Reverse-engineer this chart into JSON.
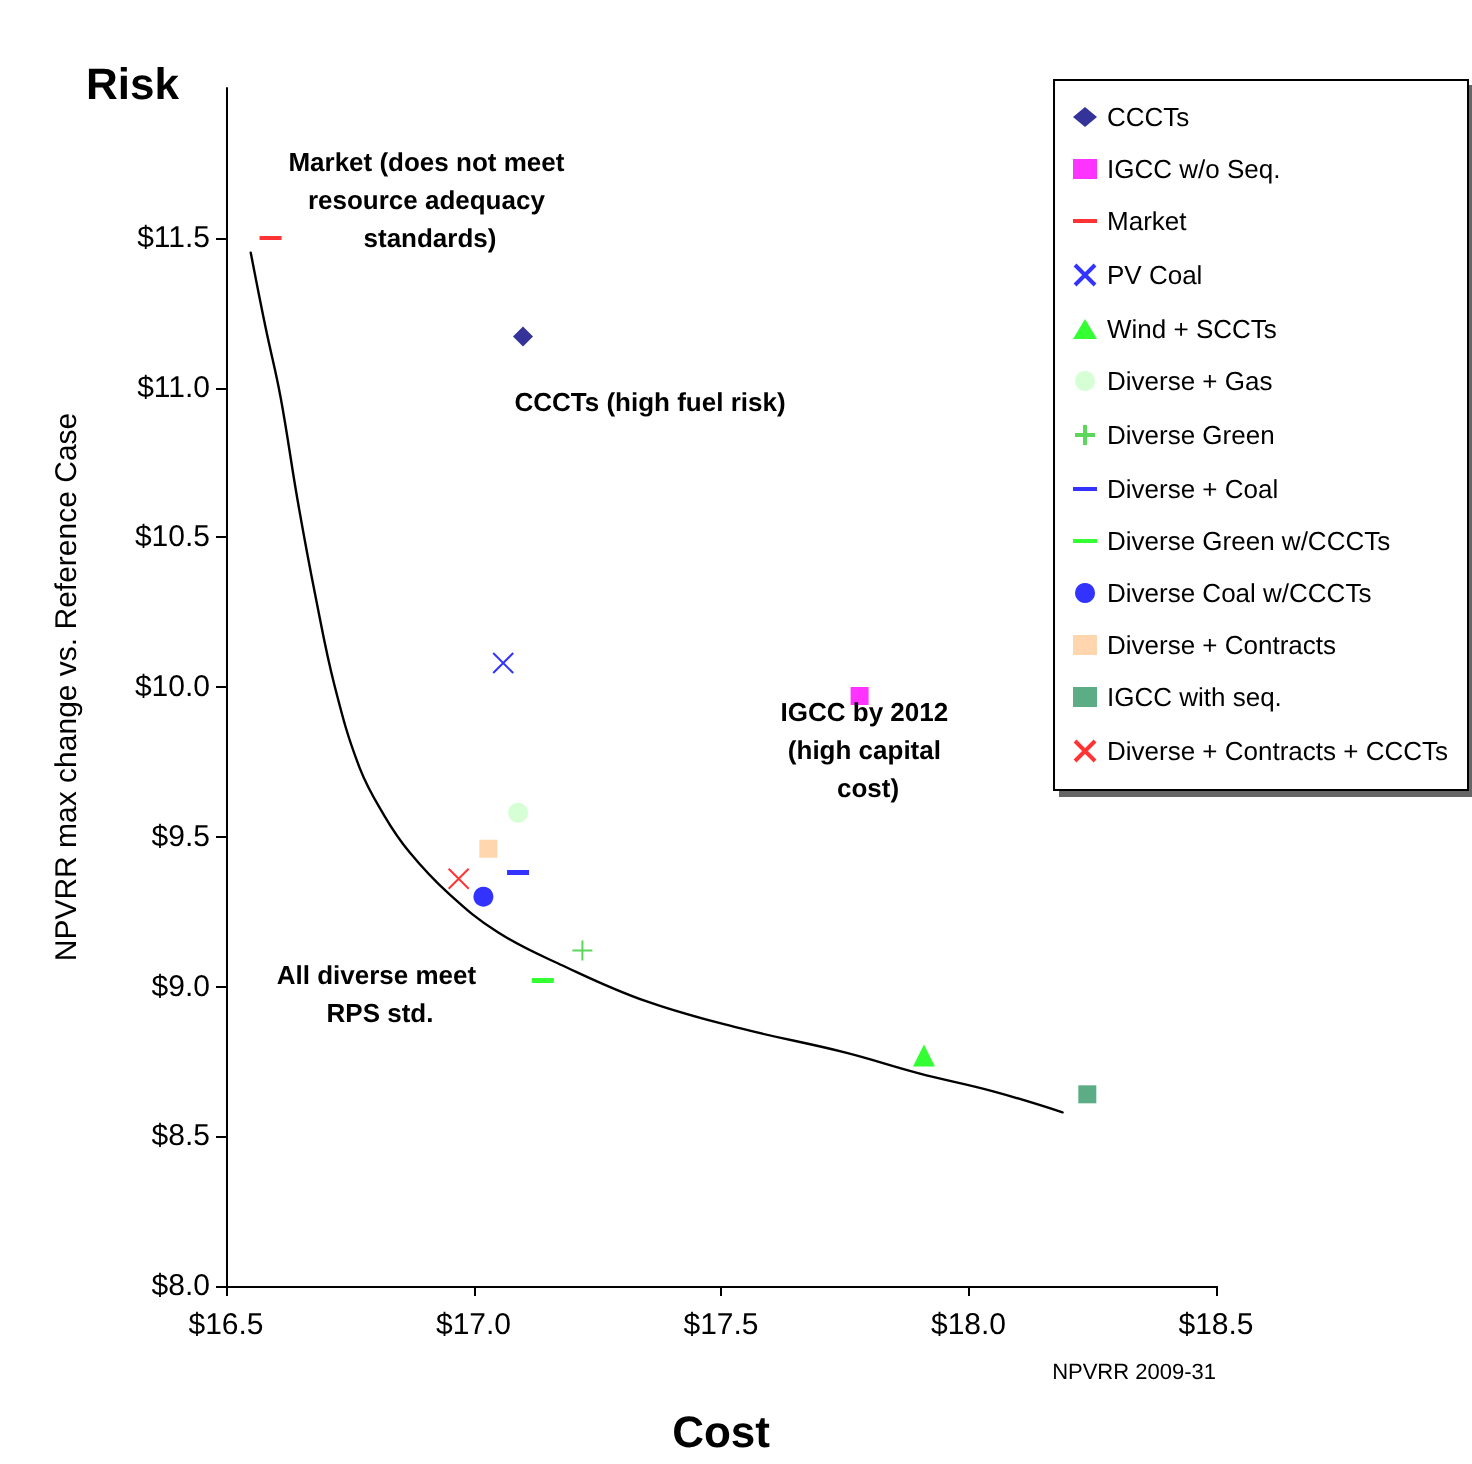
{
  "chart_data": {
    "type": "scatter",
    "title": "Risk",
    "xlabel": "Cost",
    "ylabel": "NPVRR max change vs. Reference Case",
    "xlim": [
      16.5,
      18.5
    ],
    "xticks": [
      {
        "value": 16.5,
        "label": "$16.5"
      },
      {
        "value": 17,
        "label": "$17.0"
      },
      {
        "value": 17.5,
        "label": "$17.5"
      },
      {
        "value": 18,
        "label": "$18.0"
      },
      {
        "value": 18.5,
        "label": "$18.5"
      }
    ],
    "ylim": [
      8,
      12
    ],
    "yticks": [
      {
        "value": 8,
        "label": "$8.0"
      },
      {
        "value": 8.5,
        "label": "$8.5"
      },
      {
        "value": 9,
        "label": "$9.0"
      },
      {
        "value": 9.5,
        "label": "$9.5"
      },
      {
        "value": 10,
        "label": "$10.0"
      },
      {
        "value": 10.5,
        "label": "$10.5"
      },
      {
        "value": 11,
        "label": "$11.0"
      },
      {
        "value": 11.5,
        "label": "$11.5"
      }
    ],
    "grid": false,
    "legend": "top right",
    "series": [
      {
        "name": "CCCTs",
        "color": "#000080",
        "marker": "diamond",
        "x": [
          17.1
        ],
        "values": [
          11.17
        ]
      },
      {
        "name": "IGCC w/o Seq.",
        "color": "#ff00ff",
        "marker": "square",
        "x": [
          17.78
        ],
        "values": [
          9.97
        ]
      },
      {
        "name": "Market",
        "color": "#ff0000",
        "x": [
          16.59
        ],
        "values": [
          11.5
        ]
      },
      {
        "name": "PV Coal",
        "color": "#0000ff",
        "marker": "cross",
        "x": [
          17.06
        ],
        "values": [
          10.08
        ]
      },
      {
        "name": "Wind + SCCTs",
        "color": "#00ff00",
        "marker": "triangle",
        "x": [
          17.91
        ],
        "values": [
          8.77
        ]
      },
      {
        "name": "Diverse + Gas",
        "color": "#ccffcc",
        "marker": "circle",
        "x": [
          17.09
        ],
        "values": [
          9.58
        ]
      },
      {
        "name": "Diverse Green",
        "color": "#33cc33",
        "marker": "plus",
        "x": [
          17.22
        ],
        "values": [
          9.12
        ]
      },
      {
        "name": "Diverse + Coal",
        "color": "#0000ff",
        "x": [
          17.09
        ],
        "values": [
          9.38
        ]
      },
      {
        "name": "Diverse Green w/CCCTs",
        "color": "#00ff00",
        "x": [
          17.14
        ],
        "values": [
          9.02
        ]
      },
      {
        "name": "Diverse Coal w/CCCTs",
        "color": "#0000ff",
        "marker": "circle",
        "x": [
          17.02
        ],
        "values": [
          9.3
        ]
      },
      {
        "name": "Diverse + Contracts",
        "color": "#ffcc99",
        "marker": "square",
        "x": [
          17.03
        ],
        "values": [
          9.46
        ]
      },
      {
        "name": "IGCC with seq.",
        "color": "#339966",
        "marker": "square",
        "x": [
          18.24
        ],
        "values": [
          8.64
        ]
      },
      {
        "name": "Diverse + Contracts + CCCTs",
        "color": "#ff0000",
        "marker": "cross",
        "x": [
          16.97
        ],
        "values": [
          9.36
        ]
      },
      {
        "type": "line",
        "color": "#000000",
        "marker": "none",
        "x": [
          16.55,
          16.58,
          16.61,
          16.645,
          16.68,
          16.72,
          16.77,
          16.82,
          16.87,
          16.95,
          17.05,
          17.18,
          17.35,
          17.54,
          17.75,
          17.9,
          18.05,
          18.19
        ],
        "values": [
          11.45,
          11.2,
          10.97,
          10.62,
          10.31,
          10.0,
          9.73,
          9.57,
          9.45,
          9.31,
          9.18,
          9.07,
          8.95,
          8.86,
          8.78,
          8.71,
          8.65,
          8.58
        ]
      }
    ],
    "annotations": [
      "Market (does not meet resource adequacy standards)",
      "CCCTs (high fuel risk)",
      "IGCC by 2012 (high capital cost)",
      "All diverse meet RPS std.",
      "NPVRR 2009-31"
    ]
  }
}
